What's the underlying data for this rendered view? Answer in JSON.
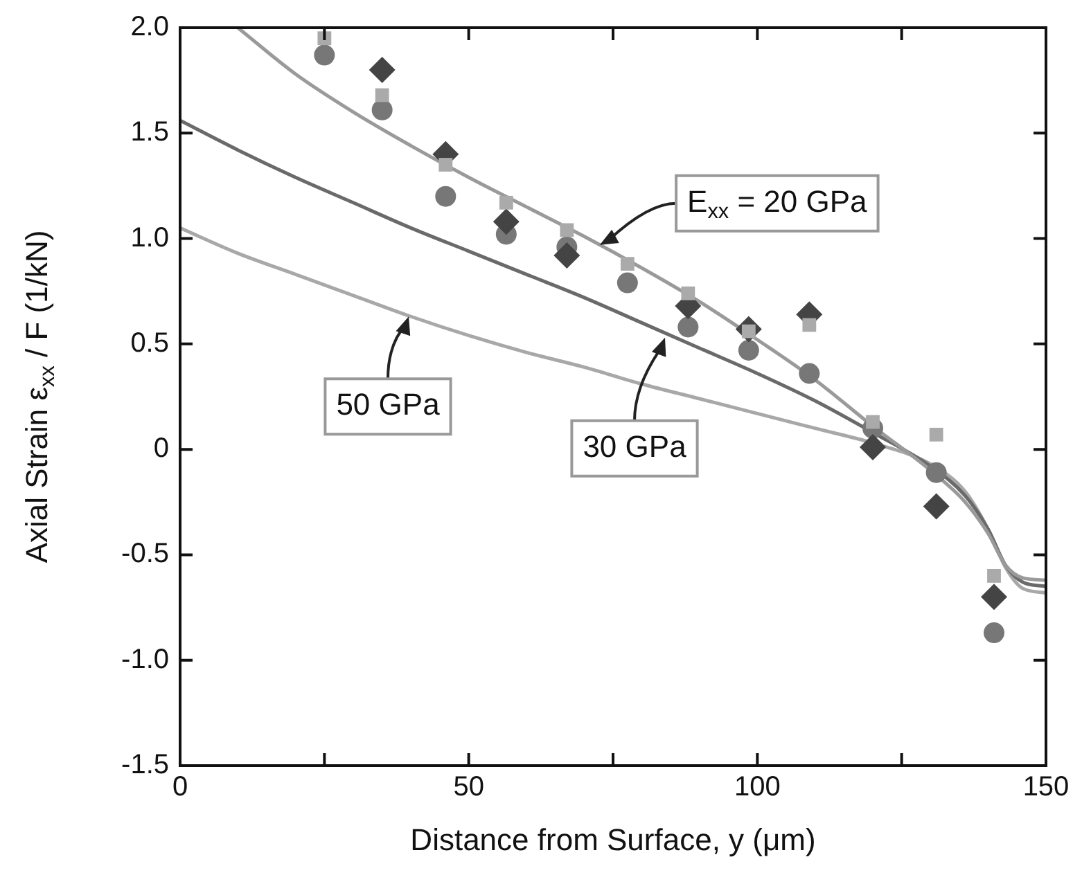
{
  "chart_data": {
    "type": "scatter",
    "xlabel": "Distance from Surface, y (μm)",
    "ylabel": "Axial Strain ε$_{xx}$ / F (1/kN)",
    "xlim": [
      0,
      150
    ],
    "ylim": [
      -1.5,
      2.0
    ],
    "xticks": [
      0,
      {
        "value": 25,
        "label": null
      },
      50,
      {
        "value": 75,
        "label": null
      },
      100,
      {
        "value": 125,
        "label": null
      },
      150
    ],
    "yticks": [
      {
        "value": -1.5,
        "label": "-1.5"
      },
      {
        "value": -1,
        "label": "-1.0"
      },
      {
        "value": -0.5,
        "label": "-0.5"
      },
      0,
      {
        "value": 0.5,
        "label": "0.5"
      },
      {
        "value": 1,
        "label": "1.0"
      },
      {
        "value": 1.5,
        "label": "1.5"
      },
      {
        "value": 2,
        "label": "2.0"
      }
    ],
    "grid": false,
    "legend": false,
    "x": [
      25,
      35,
      46,
      56.5,
      67,
      77.5,
      88,
      98.5,
      109,
      120,
      131,
      141
    ],
    "series": [
      {
        "type": "line",
        "color": "#9a9a9a",
        "marker": "none",
        "x": [
          10,
          20,
          30,
          40,
          50,
          60,
          70,
          80,
          90,
          100,
          110,
          120,
          130,
          136,
          140,
          143,
          146,
          150
        ],
        "values": [
          2.0,
          1.78,
          1.6,
          1.44,
          1.29,
          1.15,
          1.01,
          0.86,
          0.7,
          0.52,
          0.33,
          0.11,
          -0.1,
          -0.25,
          -0.4,
          -0.55,
          -0.61,
          -0.62
        ]
      },
      {
        "type": "line",
        "color": "#6a6a6a",
        "marker": "none",
        "x": [
          0,
          10,
          20,
          30,
          40,
          50,
          60,
          70,
          80,
          90,
          100,
          110,
          120,
          130,
          136,
          140,
          143,
          146,
          150
        ],
        "values": [
          1.56,
          1.42,
          1.29,
          1.17,
          1.05,
          0.94,
          0.83,
          0.72,
          0.6,
          0.48,
          0.36,
          0.23,
          0.08,
          -0.08,
          -0.22,
          -0.38,
          -0.55,
          -0.63,
          -0.65
        ]
      },
      {
        "type": "line",
        "color": "#a8a8a8",
        "marker": "none",
        "x": [
          0,
          10,
          20,
          30,
          40,
          50,
          60,
          70,
          80,
          90,
          100,
          110,
          120,
          130,
          136,
          140,
          143,
          146,
          150
        ],
        "values": [
          1.05,
          0.93,
          0.83,
          0.73,
          0.63,
          0.54,
          0.46,
          0.39,
          0.31,
          0.24,
          0.17,
          0.1,
          0.03,
          -0.07,
          -0.2,
          -0.38,
          -0.56,
          -0.66,
          -0.68
        ]
      },
      {
        "type": "scatter",
        "color": "#aaaaaa",
        "marker": "square",
        "values": [
          1.95,
          1.68,
          1.35,
          1.17,
          1.04,
          0.88,
          0.74,
          0.56,
          0.59,
          0.13,
          0.07,
          -0.6
        ]
      },
      {
        "type": "scatter",
        "color": "#444444",
        "marker": "diamond",
        "values": [
          null,
          1.8,
          1.4,
          1.08,
          0.92,
          null,
          0.68,
          0.57,
          0.64,
          0.01,
          -0.27,
          -0.7
        ]
      },
      {
        "type": "scatter",
        "color": "#777777",
        "marker": "circle",
        "values": [
          1.87,
          1.61,
          1.2,
          1.02,
          0.96,
          0.79,
          0.58,
          0.47,
          0.36,
          0.1,
          -0.11,
          -0.87
        ]
      }
    ],
    "annotations": [
      {
        "text": "E$_{xx}$ = 20 GPa",
        "x": 72.7,
        "y": 0.97
      },
      {
        "text": "30 GPa",
        "x": 84,
        "y": 0.53
      },
      {
        "text": "50 GPa",
        "x": 39.6,
        "y": 0.63
      }
    ]
  }
}
